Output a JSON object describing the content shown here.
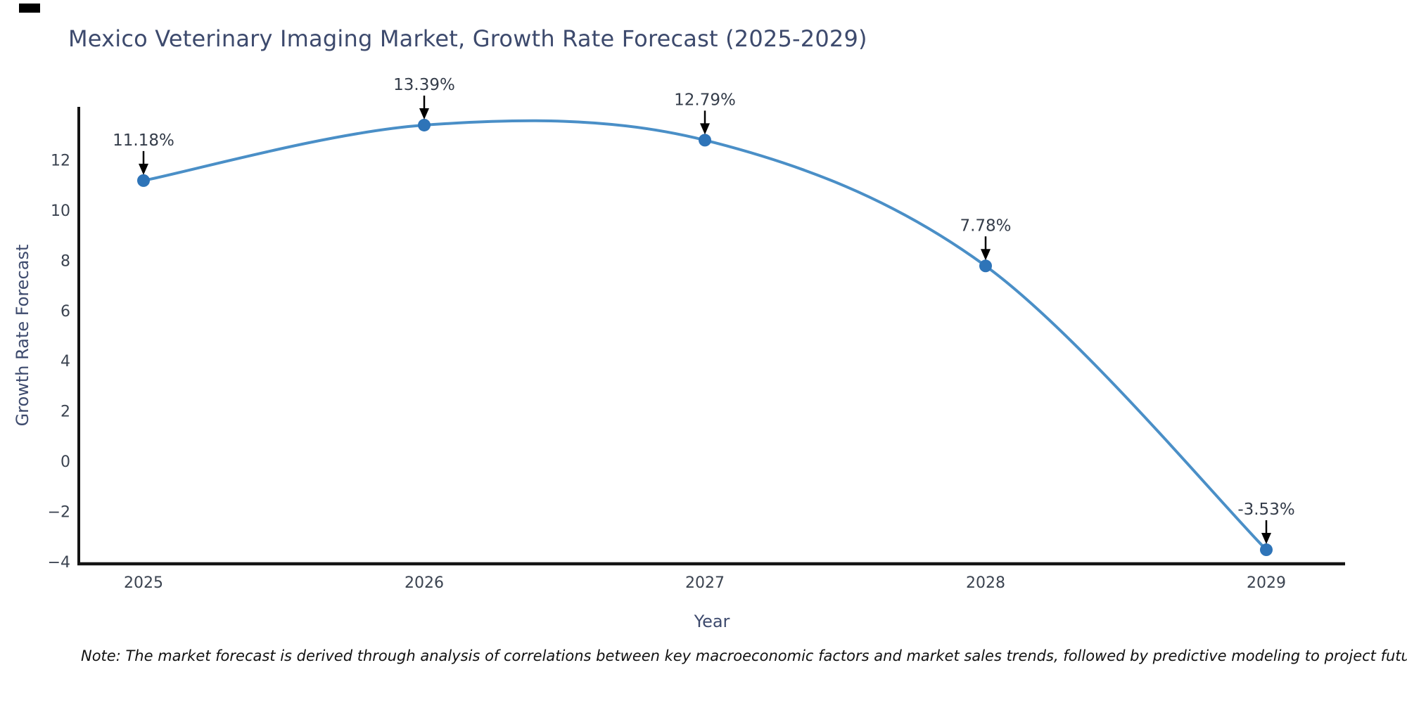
{
  "note": "Note: The market forecast is derived through analysis of correlations between key macroeconomic factors and market sales trends, followed by predictive modeling to project future sales",
  "chart_data": {
    "type": "line",
    "title": "Mexico Veterinary Imaging Market, Growth Rate Forecast (2025-2029)",
    "xlabel": "Year",
    "ylabel": "Growth Rate Forecast",
    "x": [
      2025,
      2026,
      2027,
      2028,
      2029
    ],
    "values": [
      11.18,
      13.39,
      12.79,
      7.78,
      -3.53
    ],
    "annotations": [
      "11.18%",
      "13.39%",
      "12.79%",
      "7.78%",
      "-3.53%"
    ],
    "xtick_labels": [
      "2025",
      "2026",
      "2027",
      "2028",
      "2029"
    ],
    "ytick_values": [
      12,
      10,
      8,
      6,
      4,
      2,
      0,
      -2,
      -4
    ],
    "ytick_labels": [
      "12",
      "10",
      "8",
      "6",
      "4",
      "2",
      "0",
      "−2",
      "−4"
    ],
    "ylim": [
      -4.2,
      14.1
    ],
    "line_shape": "spline",
    "grid": false,
    "legend": null,
    "colors": {
      "line": "#4a8fc7",
      "marker": "#2e74b8",
      "spine": "#141414",
      "arrow": "#000000",
      "title": "#3d4a6d",
      "tick": "#3b4350",
      "annotation": "#343c49",
      "note": "#111111",
      "background": "#ffffff"
    }
  }
}
